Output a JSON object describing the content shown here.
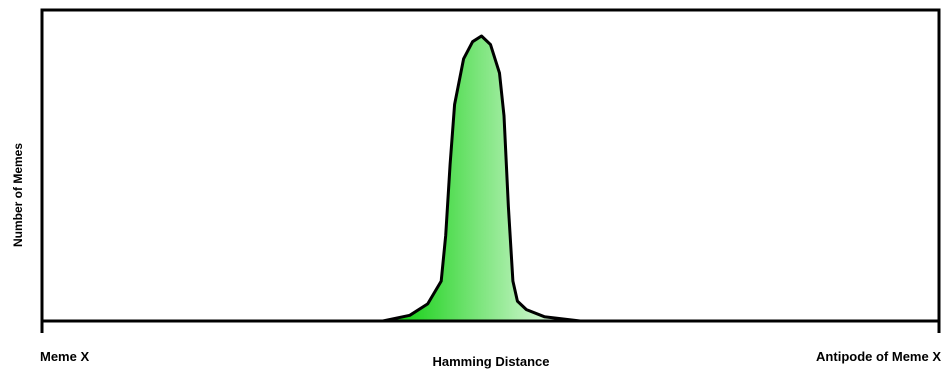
{
  "chart_data": {
    "type": "area",
    "title": "",
    "xlabel": "Hamming Distance",
    "ylabel": "Number of Memes",
    "x_endpoints": {
      "left": "Meme X",
      "right": "Antipode of Meme X"
    },
    "xlim": [
      0,
      1
    ],
    "ylim": [
      0,
      1
    ],
    "grid": false,
    "legend": "none",
    "series": [
      {
        "x": [
          0.38,
          0.41,
          0.43,
          0.445,
          0.45,
          0.455,
          0.46,
          0.47,
          0.48,
          0.49,
          0.5,
          0.51,
          0.515,
          0.52,
          0.525,
          0.53,
          0.54,
          0.56,
          0.6
        ],
        "values": [
          0.0,
          0.02,
          0.06,
          0.14,
          0.3,
          0.55,
          0.76,
          0.92,
          0.98,
          1.0,
          0.97,
          0.87,
          0.72,
          0.4,
          0.14,
          0.07,
          0.04,
          0.015,
          0.0
        ]
      }
    ],
    "colors": {
      "fill_dark": "#00cc00",
      "fill_light": "#ffffff",
      "outline": "#000000"
    }
  }
}
